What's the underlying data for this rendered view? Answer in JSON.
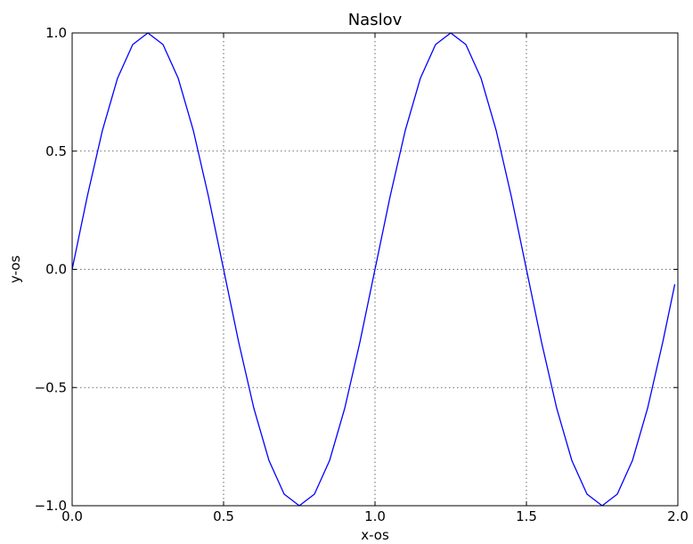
{
  "chart_data": {
    "type": "line",
    "title": "Naslov",
    "xlabel": "x-os",
    "ylabel": "y-os",
    "xlim": [
      0.0,
      2.0
    ],
    "ylim": [
      -1.0,
      1.0
    ],
    "grid": true,
    "x_ticks": [
      0.0,
      0.5,
      1.0,
      1.5,
      2.0
    ],
    "y_ticks": [
      -1.0,
      -0.5,
      0.0,
      0.5,
      1.0
    ],
    "x_tick_labels": [
      "0.0",
      "0.5",
      "1.0",
      "1.5",
      "2.0"
    ],
    "y_tick_labels": [
      "−1.0",
      "−0.5",
      "0.0",
      "0.5",
      "1.0"
    ],
    "series": [
      {
        "color": "#0000ff",
        "x": [
          0.0,
          0.05,
          0.1,
          0.15,
          0.2,
          0.25,
          0.3,
          0.35,
          0.4,
          0.45,
          0.5,
          0.55,
          0.6,
          0.65,
          0.7,
          0.75,
          0.8,
          0.85,
          0.9,
          0.95,
          1.0,
          1.05,
          1.1,
          1.15,
          1.2,
          1.25,
          1.3,
          1.35,
          1.4,
          1.45,
          1.5,
          1.55,
          1.6,
          1.65,
          1.7,
          1.75,
          1.8,
          1.85,
          1.9,
          1.95,
          1.99
        ],
        "y": [
          0.0,
          0.309,
          0.588,
          0.809,
          0.951,
          1.0,
          0.951,
          0.809,
          0.588,
          0.309,
          0.0,
          -0.309,
          -0.588,
          -0.809,
          -0.951,
          -1.0,
          -0.951,
          -0.809,
          -0.588,
          -0.309,
          0.0,
          0.309,
          0.588,
          0.809,
          0.951,
          1.0,
          0.951,
          0.809,
          0.588,
          0.309,
          0.0,
          -0.309,
          -0.588,
          -0.809,
          -0.951,
          -1.0,
          -0.951,
          -0.809,
          -0.588,
          -0.309,
          -0.063
        ]
      }
    ]
  }
}
